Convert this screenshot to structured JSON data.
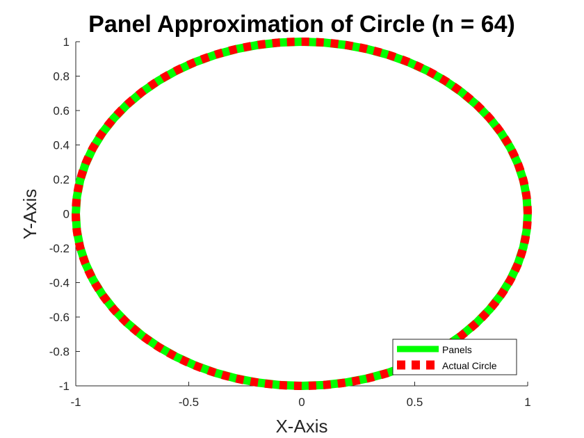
{
  "chart_data": {
    "type": "line",
    "title": "Panel Approximation of Circle (n = 64)",
    "xlabel": "X-Axis",
    "ylabel": "Y-Axis",
    "xlim": [
      -1,
      1
    ],
    "ylim": [
      -1,
      1
    ],
    "xticks": [
      -1,
      -0.5,
      0,
      0.5,
      1
    ],
    "xtick_labels": [
      "-1",
      "-0.5",
      "0",
      "0.5",
      "1"
    ],
    "yticks": [
      -1,
      -0.8,
      -0.6,
      -0.4,
      -0.2,
      0,
      0.2,
      0.4,
      0.6,
      0.8,
      1
    ],
    "ytick_labels": [
      "-1",
      "-0.8",
      "-0.6",
      "-0.4",
      "-0.2",
      "0",
      "0.2",
      "0.4",
      "0.6",
      "0.8",
      "1"
    ],
    "grid": false,
    "legend_position": "bottom-right",
    "series": [
      {
        "name": "Panels",
        "color": "#00ff00",
        "line_style": "solid",
        "num_panels": 64,
        "shape": "unit circle x = cos(t), y = sin(t)"
      },
      {
        "name": "Actual Circle",
        "color": "#ff0000",
        "line_style": "dashed",
        "shape": "unit circle x = cos(t), y = sin(t)"
      }
    ]
  }
}
